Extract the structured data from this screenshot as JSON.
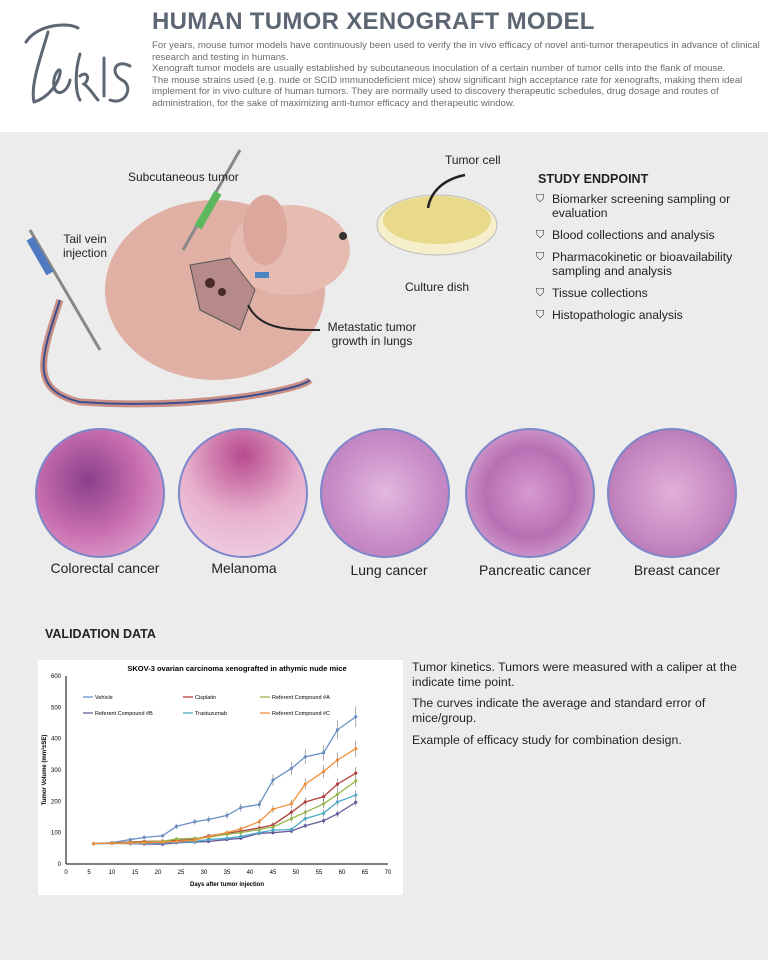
{
  "header": {
    "logo": "Tonis",
    "title": "HUMAN TUMOR XENOGRAFT MODEL",
    "paragraphs": [
      "For years, mouse tumor models have continuously been used to verify the in vivo efficacy of novel anti-tumor therapeutics in advance of clinical research and testing in humans.",
      "Xenograft tumor models are usually established by subcutaneous inoculation of a certain number of tumor cells into the flank of mouse.",
      "The mouse strains used (e.g. nude or SCID immunodeficient mice) show significant high acceptance rate for xenografts, making them ideal implement for in vivo culture of human tumors. They are normally used to discovery therapeutic schedules, drug dosage and routes of administration, for the sake of maximizing anti-tumor efficacy and therapeutic window."
    ]
  },
  "illustration": {
    "subcutaneous": "Subcutaneous tumor",
    "tail_vein": "Tail vein injection",
    "tumor_cell": "Tumor cell",
    "culture_dish": "Culture dish",
    "metastatic": "Metastatic tumor growth in lungs"
  },
  "study_endpoint": {
    "title": "STUDY ENDPOINT",
    "icon": "shield-check-icon",
    "items": [
      "Biomarker screening sampling or evaluation",
      "Blood collections and analysis",
      "Pharmacokinetic or bioavailability sampling  and analysis",
      "Tissue collections",
      "Histopathologic analysis"
    ]
  },
  "histology": [
    "Colorectal cancer",
    "Melanoma",
    "Lung cancer",
    "Pancreatic cancer",
    "Breast cancer"
  ],
  "validation": {
    "title": "VALIDATION DATA",
    "texts": [
      "Tumor kinetics. Tumors were measured with a caliper at the indicate time point.",
      "The curves indicate the average and standard error of mice/group.",
      "Example of efficacy study for combination design."
    ]
  },
  "chart_data": {
    "type": "line",
    "title": "SKOV-3 ovarian carcinoma xenografted in athymic nude mice",
    "xlabel": "Days after tumor injection",
    "ylabel": "Tumor Volume (mm³±SE)",
    "xlim": [
      0,
      70
    ],
    "ylim": [
      0,
      600
    ],
    "xticks": [
      0,
      5,
      10,
      15,
      20,
      25,
      30,
      35,
      40,
      45,
      50,
      55,
      60,
      65,
      70
    ],
    "yticks": [
      0,
      100,
      200,
      300,
      400,
      500,
      600
    ],
    "legend": "top-left, inside",
    "x": [
      6,
      10,
      14,
      17,
      21,
      24,
      28,
      31,
      35,
      38,
      42,
      45,
      49,
      52,
      56,
      59,
      63
    ],
    "series": [
      {
        "name": "Vehicle",
        "color": "#6b8fc4",
        "values": [
          65,
          68,
          78,
          85,
          90,
          120,
          135,
          142,
          155,
          180,
          190,
          268,
          305,
          342,
          355,
          428,
          470
        ]
      },
      {
        "name": "Cisplatin",
        "color": "#b0403c",
        "values": [
          65,
          67,
          70,
          72,
          73,
          75,
          78,
          90,
          98,
          105,
          115,
          125,
          165,
          198,
          215,
          255,
          290
        ]
      },
      {
        "name": "Referent Compound #A",
        "color": "#94b64a",
        "values": [
          65,
          67,
          68,
          70,
          72,
          80,
          82,
          85,
          95,
          100,
          110,
          118,
          145,
          165,
          192,
          222,
          265
        ]
      },
      {
        "name": "Referent Compound #B",
        "color": "#6a5a9a",
        "values": [
          65,
          66,
          65,
          64,
          63,
          68,
          70,
          72,
          78,
          82,
          98,
          100,
          105,
          122,
          138,
          160,
          197
        ]
      },
      {
        "name": "Trastuzumab",
        "color": "#4fa9c8",
        "values": [
          65,
          66,
          66,
          66,
          68,
          70,
          72,
          78,
          82,
          88,
          100,
          108,
          110,
          145,
          162,
          198,
          220
        ]
      },
      {
        "name": "Referent Compound #C",
        "color": "#ef8f3a",
        "values": [
          65,
          66,
          67,
          68,
          70,
          72,
          76,
          88,
          100,
          112,
          135,
          175,
          192,
          255,
          295,
          332,
          368
        ]
      }
    ]
  }
}
